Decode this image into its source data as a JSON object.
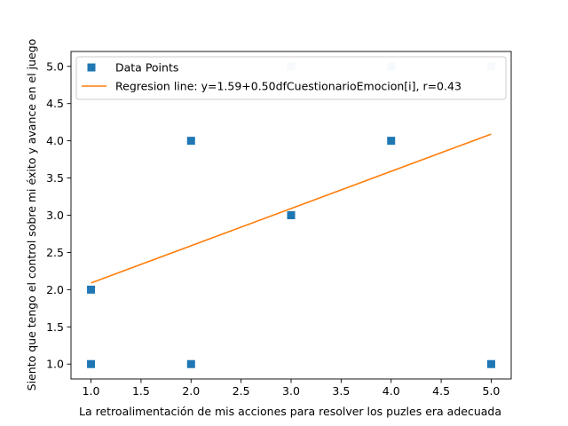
{
  "chart_data": {
    "type": "scatter",
    "title": "",
    "xlabel": "La retroalimentación de mis acciones para resolver los puzles era adecuada",
    "ylabel": "Siento que tengo el control sobre mi éxito y avance en el juego",
    "xlim": [
      0.8,
      5.2
    ],
    "ylim": [
      0.8,
      5.2
    ],
    "xticks": [
      1.0,
      1.5,
      2.0,
      2.5,
      3.0,
      3.5,
      4.0,
      4.5,
      5.0
    ],
    "yticks": [
      1.0,
      1.5,
      2.0,
      2.5,
      3.0,
      3.5,
      4.0,
      4.5,
      5.0
    ],
    "xtick_labels": [
      "1.0",
      "1.5",
      "2.0",
      "2.5",
      "3.0",
      "3.5",
      "4.0",
      "4.5",
      "5.0"
    ],
    "ytick_labels": [
      "1.0",
      "1.5",
      "2.0",
      "2.5",
      "3.0",
      "3.5",
      "4.0",
      "4.5",
      "5.0"
    ],
    "grid": false,
    "legend_position": "top-left",
    "series": [
      {
        "name": "Data Points",
        "kind": "scatter",
        "marker": "square",
        "color": "#1f77b4",
        "points": [
          {
            "x": 1,
            "y": 1,
            "opacity": 1.0
          },
          {
            "x": 1,
            "y": 2,
            "opacity": 1.0
          },
          {
            "x": 2,
            "y": 1,
            "opacity": 1.0
          },
          {
            "x": 2,
            "y": 4,
            "opacity": 1.0
          },
          {
            "x": 3,
            "y": 3,
            "opacity": 1.0
          },
          {
            "x": 3,
            "y": 5,
            "opacity": 0.2
          },
          {
            "x": 4,
            "y": 4,
            "opacity": 1.0
          },
          {
            "x": 4,
            "y": 5,
            "opacity": 0.2
          },
          {
            "x": 5,
            "y": 1,
            "opacity": 1.0
          },
          {
            "x": 5,
            "y": 5,
            "opacity": 0.2
          }
        ]
      },
      {
        "name": "Regresion line: y=1.59+0.50dfCuestionarioEmocion[i], r=0.43",
        "kind": "line",
        "color": "#ff7f0e",
        "points": [
          {
            "x": 1,
            "y": 2.09
          },
          {
            "x": 5,
            "y": 4.09
          }
        ]
      }
    ]
  }
}
